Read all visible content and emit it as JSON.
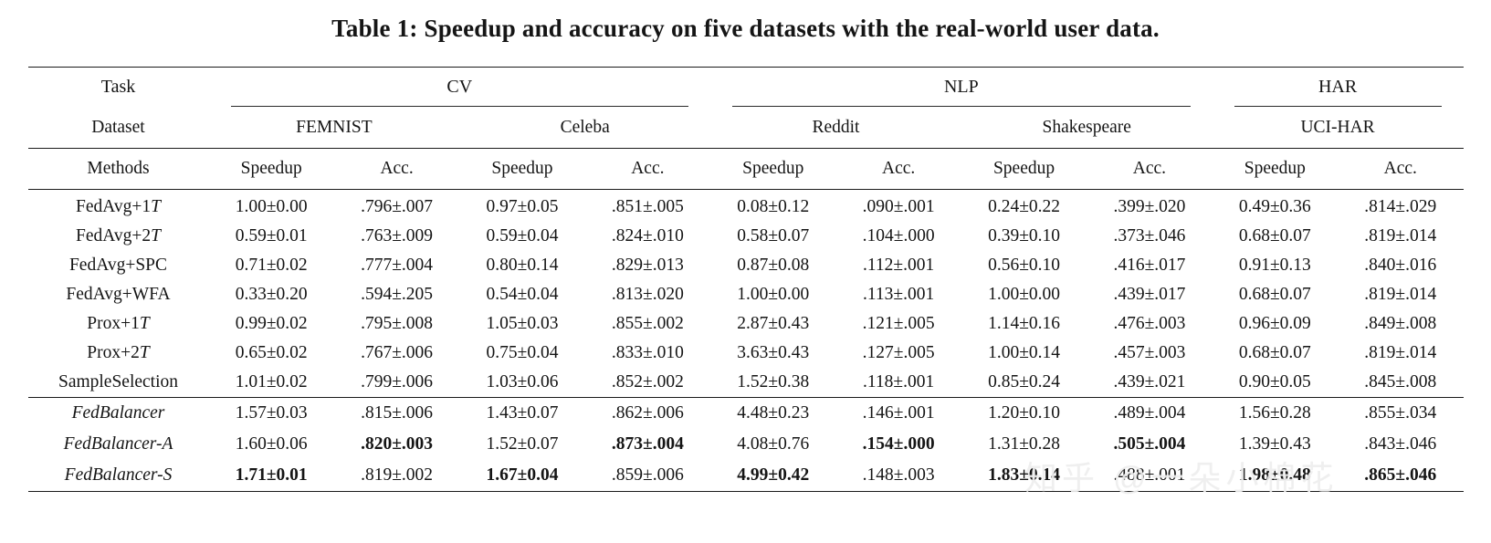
{
  "title": "Table 1: Speedup and accuracy on five datasets with the real-world user data.",
  "watermark": "知乎 @一朵小棉花",
  "table": {
    "group_headers": [
      {
        "label": "Task",
        "span": 1
      },
      {
        "label": "CV",
        "span": 4
      },
      {
        "label": "NLP",
        "span": 4
      },
      {
        "label": "HAR",
        "span": 2
      }
    ],
    "dataset_headers": [
      {
        "label": "Dataset",
        "span": 1
      },
      {
        "label": "FEMNIST",
        "span": 2
      },
      {
        "label": "Celeba",
        "span": 2
      },
      {
        "label": "Reddit",
        "span": 2
      },
      {
        "label": "Shakespeare",
        "span": 2
      },
      {
        "label": "UCI-HAR",
        "span": 2
      }
    ],
    "column_headers": [
      "Methods",
      "Speedup",
      "Acc.",
      "Speedup",
      "Acc.",
      "Speedup",
      "Acc.",
      "Speedup",
      "Acc.",
      "Speedup",
      "Acc."
    ],
    "baseline_rows": [
      {
        "method": "FedAvg+1T",
        "math_t": true,
        "italic": false,
        "bold": [],
        "cells": [
          "1.00±0.00",
          ".796±.007",
          "0.97±0.05",
          ".851±.005",
          "0.08±0.12",
          ".090±.001",
          "0.24±0.22",
          ".399±.020",
          "0.49±0.36",
          ".814±.029"
        ]
      },
      {
        "method": "FedAvg+2T",
        "math_t": true,
        "italic": false,
        "bold": [],
        "cells": [
          "0.59±0.01",
          ".763±.009",
          "0.59±0.04",
          ".824±.010",
          "0.58±0.07",
          ".104±.000",
          "0.39±0.10",
          ".373±.046",
          "0.68±0.07",
          ".819±.014"
        ]
      },
      {
        "method": "FedAvg+SPC",
        "math_t": false,
        "italic": false,
        "bold": [],
        "cells": [
          "0.71±0.02",
          ".777±.004",
          "0.80±0.14",
          ".829±.013",
          "0.87±0.08",
          ".112±.001",
          "0.56±0.10",
          ".416±.017",
          "0.91±0.13",
          ".840±.016"
        ]
      },
      {
        "method": "FedAvg+WFA",
        "math_t": false,
        "italic": false,
        "bold": [],
        "cells": [
          "0.33±0.20",
          ".594±.205",
          "0.54±0.04",
          ".813±.020",
          "1.00±0.00",
          ".113±.001",
          "1.00±0.00",
          ".439±.017",
          "0.68±0.07",
          ".819±.014"
        ]
      },
      {
        "method": "Prox+1T",
        "math_t": true,
        "italic": false,
        "bold": [],
        "cells": [
          "0.99±0.02",
          ".795±.008",
          "1.05±0.03",
          ".855±.002",
          "2.87±0.43",
          ".121±.005",
          "1.14±0.16",
          ".476±.003",
          "0.96±0.09",
          ".849±.008"
        ]
      },
      {
        "method": "Prox+2T",
        "math_t": true,
        "italic": false,
        "bold": [],
        "cells": [
          "0.65±0.02",
          ".767±.006",
          "0.75±0.04",
          ".833±.010",
          "3.63±0.43",
          ".127±.005",
          "1.00±0.14",
          ".457±.003",
          "0.68±0.07",
          ".819±.014"
        ]
      },
      {
        "method": "SampleSelection",
        "math_t": false,
        "italic": false,
        "bold": [],
        "cells": [
          "1.01±0.02",
          ".799±.006",
          "1.03±0.06",
          ".852±.002",
          "1.52±0.38",
          ".118±.001",
          "0.85±0.24",
          ".439±.021",
          "0.90±0.05",
          ".845±.008"
        ]
      }
    ],
    "fedbalancer_rows": [
      {
        "method": "FedBalancer",
        "math_t": false,
        "italic": true,
        "bold": [],
        "cells": [
          "1.57±0.03",
          ".815±.006",
          "1.43±0.07",
          ".862±.006",
          "4.48±0.23",
          ".146±.001",
          "1.20±0.10",
          ".489±.004",
          "1.56±0.28",
          ".855±.034"
        ]
      },
      {
        "method": "FedBalancer-A",
        "math_t": false,
        "italic": true,
        "bold": [
          1,
          3,
          5,
          7
        ],
        "cells": [
          "1.60±0.06",
          ".820±.003",
          "1.52±0.07",
          ".873±.004",
          "4.08±0.76",
          ".154±.000",
          "1.31±0.28",
          ".505±.004",
          "1.39±0.43",
          ".843±.046"
        ]
      },
      {
        "method": "FedBalancer-S",
        "math_t": false,
        "italic": true,
        "bold": [
          0,
          2,
          4,
          6,
          8,
          9
        ],
        "cells": [
          "1.71±0.01",
          ".819±.002",
          "1.67±0.04",
          ".859±.006",
          "4.99±0.42",
          ".148±.003",
          "1.83±0.14",
          ".488±.001",
          "1.98±0.48",
          ".865±.046"
        ]
      }
    ]
  }
}
